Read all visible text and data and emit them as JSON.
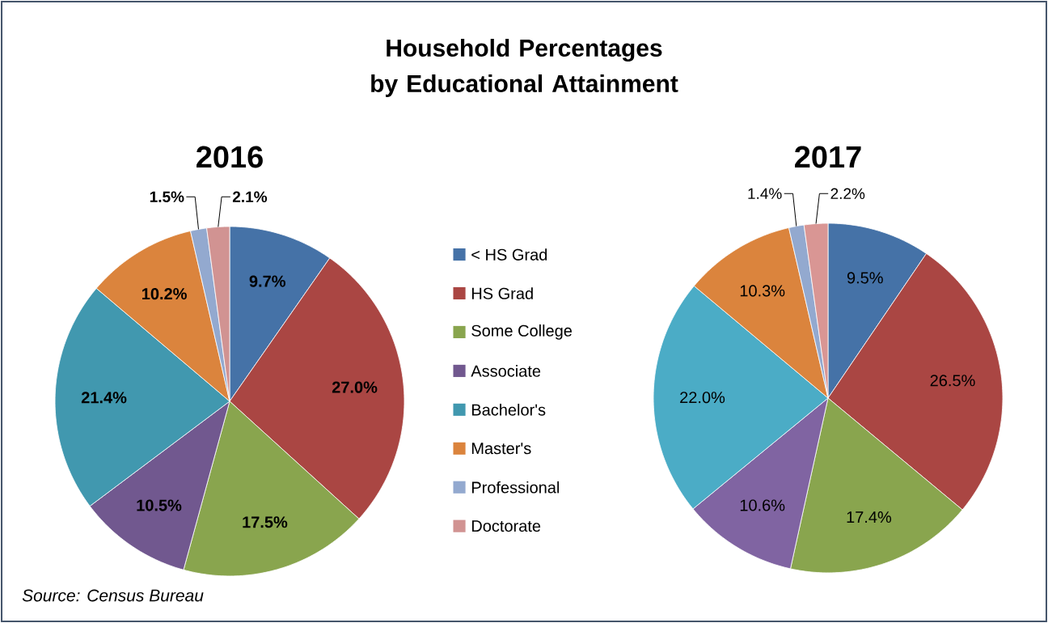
{
  "chart_data": [
    {
      "type": "pie",
      "title": "Household Percentages by Educational Attainment",
      "subtitle": "2016",
      "categories": [
        "< HS Grad",
        "HS Grad",
        "Some College",
        "Associate",
        "Bachelor's",
        "Master's",
        "Professional",
        "Doctorate"
      ],
      "values": [
        9.7,
        27.0,
        17.5,
        10.5,
        21.4,
        10.2,
        1.5,
        2.1
      ],
      "value_labels": [
        "9.7%",
        "27.0%",
        "17.5%",
        "10.5%",
        "21.4%",
        "10.2%",
        "1.5%",
        "2.1%"
      ],
      "colors": [
        "#4572a7",
        "#aa4643",
        "#89a54e",
        "#71588f",
        "#4198af",
        "#db843d",
        "#93a9cf",
        "#d19392"
      ],
      "legend": "right",
      "annotations": [
        "Source: Census Bureau"
      ]
    },
    {
      "type": "pie",
      "title": "2017",
      "values": [
        9.5,
        26.5,
        17.4,
        10.6,
        22.0,
        10.3,
        1.4,
        2.2
      ],
      "value_labels": [
        "9.5%",
        "26.5%",
        "17.4%",
        "10.6%",
        "22.0%",
        "10.3%",
        "1.4%",
        "2.2%"
      ],
      "colors": [
        "#4572a7",
        "#aa4643",
        "#89a54e",
        "#8064a2",
        "#4bacc6",
        "#db843d",
        "#93a9cf",
        "#d99694"
      ]
    }
  ]
}
